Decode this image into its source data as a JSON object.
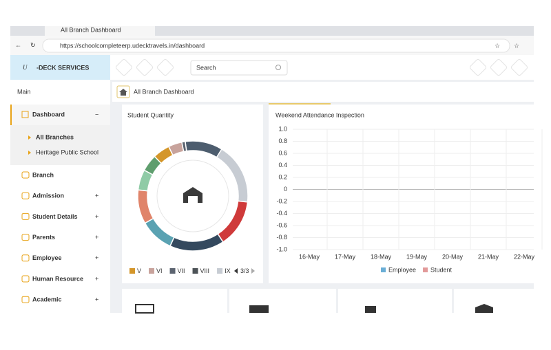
{
  "browser": {
    "tab_title": "All Branch Dashboard",
    "url": "https://schoolcompleteerp.udecktravels.in/dashboard"
  },
  "header": {
    "logo_letter": "U",
    "logo_text": "-DECK SERVICES",
    "search_placeholder": "Search"
  },
  "sidebar": {
    "section": "Main",
    "active": {
      "label": "Dashboard",
      "toggle": "−"
    },
    "subitems": [
      "All Branches",
      "Heritage Public School"
    ],
    "items": [
      {
        "label": "Branch"
      },
      {
        "label": "Admission",
        "toggle": "+"
      },
      {
        "label": "Student Details",
        "toggle": "+"
      },
      {
        "label": "Parents",
        "toggle": "+"
      },
      {
        "label": "Employee",
        "toggle": "+"
      },
      {
        "label": "Human Resource",
        "toggle": "+"
      },
      {
        "label": "Academic",
        "toggle": "+"
      }
    ]
  },
  "page_title": "All Branch Dashboard",
  "chart_data": [
    {
      "type": "pie",
      "title": "Student Quantity",
      "values": [
        11,
        18,
        14,
        16,
        10,
        10,
        6,
        5,
        5,
        4,
        1
      ],
      "colors": [
        "#4d5d6e",
        "#c7ccd3",
        "#cf3a3a",
        "#34495e",
        "#5aa2b2",
        "#e0846a",
        "#8fcba6",
        "#5f9e6e",
        "#d4962a",
        "#c8a39c",
        "#5c6470"
      ],
      "legend": [
        {
          "name": "V",
          "color": "#d4962a"
        },
        {
          "name": "VI",
          "color": "#c8a39c"
        },
        {
          "name": "VII",
          "color": "#5c6470"
        },
        {
          "name": "VIII",
          "color": "#4d5357"
        },
        {
          "name": "IX",
          "color": "#c7ccd3"
        }
      ],
      "pager": "3/3"
    },
    {
      "type": "line",
      "title": "Weekend Attendance Inspection",
      "categories": [
        "16-May",
        "17-May",
        "18-May",
        "19-May",
        "20-May",
        "21-May",
        "22-May"
      ],
      "series": [
        {
          "name": "Employee",
          "color": "#6aaed6",
          "values": [
            null,
            null,
            null,
            null,
            null,
            null,
            null
          ]
        },
        {
          "name": "Student",
          "color": "#e29a9a",
          "values": [
            null,
            null,
            null,
            null,
            null,
            null,
            null
          ]
        }
      ],
      "ylim": [
        -1,
        1
      ],
      "yticks": [
        {
          "value": -1,
          "label": "-1.0"
        },
        -0.8,
        -0.6,
        -0.4,
        -0.2,
        0,
        0.2,
        0.4,
        0.6,
        0.8,
        {
          "value": 1,
          "label": "1.0"
        }
      ],
      "grid": true
    }
  ]
}
